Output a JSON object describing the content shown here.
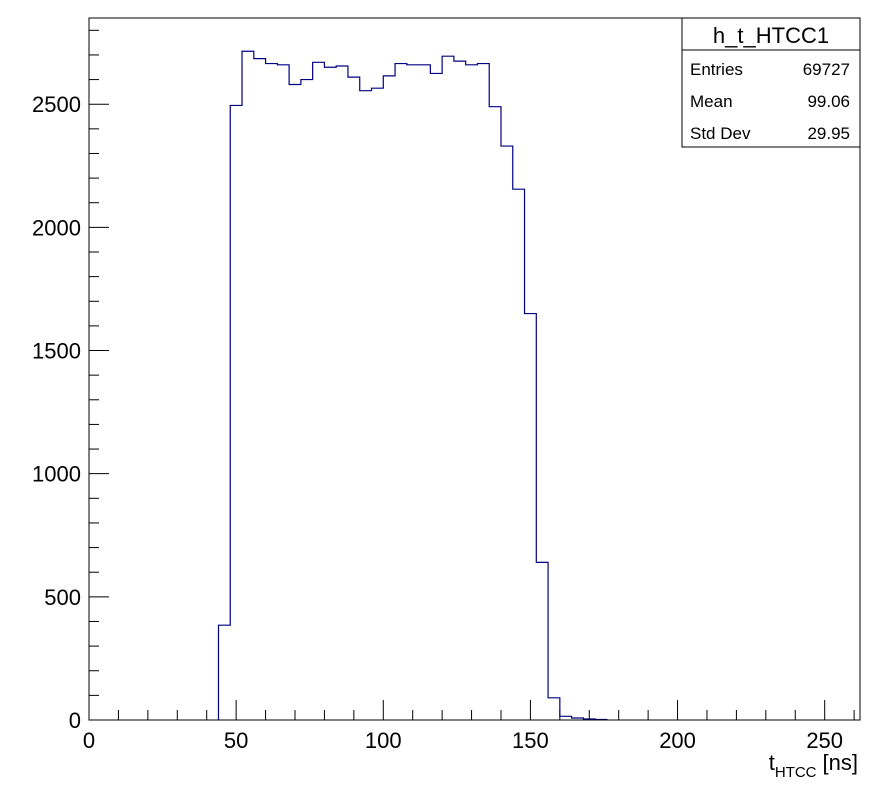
{
  "chart_data": {
    "type": "bar",
    "histogram_name": "h_t_HTCC1",
    "stats": [
      {
        "label": "Entries",
        "value": "69727"
      },
      {
        "label": "Mean",
        "value": "99.06"
      },
      {
        "label": "Std Dev",
        "value": "29.95"
      }
    ],
    "xlabel_main": "t",
    "xlabel_sub": "HTCC",
    "xlabel_unit": "[ns]",
    "ylabel": "",
    "xlim": [
      0,
      262
    ],
    "ylim": [
      0,
      2850
    ],
    "x_ticks": [
      "0",
      "50",
      "100",
      "150",
      "200",
      "250"
    ],
    "y_ticks": [
      "0",
      "500",
      "1000",
      "1500",
      "2000",
      "2500"
    ],
    "x_major_values": [
      0,
      50,
      100,
      150,
      200,
      250
    ],
    "y_major_values": [
      0,
      500,
      1000,
      1500,
      2000,
      2500
    ],
    "bin_edges": [
      44,
      48,
      52,
      56,
      60,
      64,
      68,
      72,
      76,
      80,
      84,
      88,
      92,
      96,
      100,
      104,
      108,
      112,
      116,
      120,
      124,
      128,
      132,
      136,
      140,
      144,
      148,
      152,
      156,
      160,
      164,
      168,
      172,
      176
    ],
    "values": [
      385,
      2495,
      2715,
      2685,
      2665,
      2660,
      2580,
      2600,
      2670,
      2650,
      2655,
      2610,
      2555,
      2565,
      2615,
      2665,
      2660,
      2660,
      2625,
      2695,
      2675,
      2660,
      2665,
      2490,
      2330,
      2155,
      1650,
      640,
      90,
      15,
      8,
      4,
      2
    ],
    "line_color": "#000080",
    "grid": false
  }
}
